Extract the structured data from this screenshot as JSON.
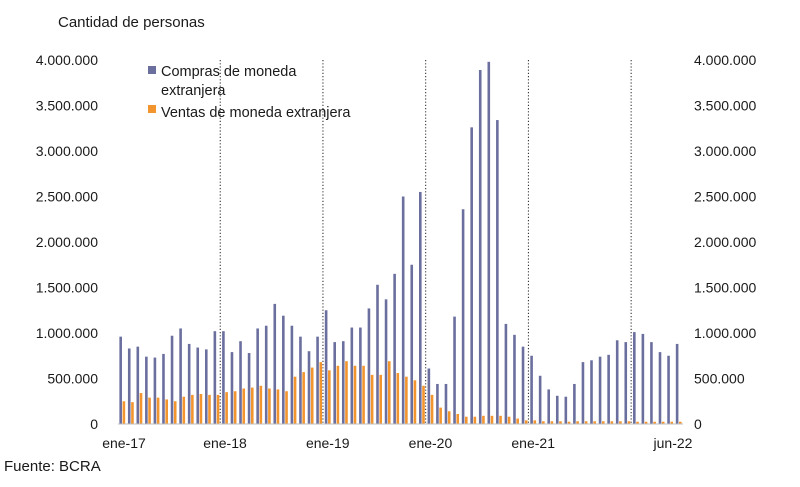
{
  "chart_data": {
    "type": "bar",
    "ylabel": "Cantidad de personas",
    "source": "Fuente: BCRA",
    "ylim": [
      0,
      4000000
    ],
    "yticks": [
      0,
      500000,
      1000000,
      1500000,
      2000000,
      2500000,
      3000000,
      3500000,
      4000000
    ],
    "ytick_labels": [
      "0",
      "500.000",
      "1.000.000",
      "1.500.000",
      "2.000.000",
      "2.500.000",
      "3.000.000",
      "3.500.000",
      "4.000.000"
    ],
    "x_labels": [
      {
        "label": "ene-17",
        "index": 0
      },
      {
        "label": "ene-18",
        "index": 12
      },
      {
        "label": "ene-19",
        "index": 24
      },
      {
        "label": "ene-20",
        "index": 36
      },
      {
        "label": "ene-21",
        "index": 48
      },
      {
        "label": "jun-22",
        "index": 65
      }
    ],
    "vlines_at_index": [
      12,
      24,
      36,
      48,
      60
    ],
    "categories": [
      "ene-17",
      "feb-17",
      "mar-17",
      "abr-17",
      "may-17",
      "jun-17",
      "jul-17",
      "ago-17",
      "sep-17",
      "oct-17",
      "nov-17",
      "dic-17",
      "ene-18",
      "feb-18",
      "mar-18",
      "abr-18",
      "may-18",
      "jun-18",
      "jul-18",
      "ago-18",
      "sep-18",
      "oct-18",
      "nov-18",
      "dic-18",
      "ene-19",
      "feb-19",
      "mar-19",
      "abr-19",
      "may-19",
      "jun-19",
      "jul-19",
      "ago-19",
      "sep-19",
      "oct-19",
      "nov-19",
      "dic-19",
      "ene-20",
      "feb-20",
      "mar-20",
      "abr-20",
      "may-20",
      "jun-20",
      "jul-20",
      "ago-20",
      "sep-20",
      "oct-20",
      "nov-20",
      "dic-20",
      "ene-21",
      "feb-21",
      "mar-21",
      "abr-21",
      "may-21",
      "jun-21",
      "jul-21",
      "ago-21",
      "sep-21",
      "oct-21",
      "nov-21",
      "dic-21",
      "ene-22",
      "feb-22",
      "mar-22",
      "abr-22",
      "may-22",
      "jun-22"
    ],
    "series": [
      {
        "name": "Compras de moneda extranjera",
        "color": "#6b6f9e",
        "values": [
          960000,
          830000,
          850000,
          740000,
          730000,
          770000,
          970000,
          1050000,
          880000,
          840000,
          820000,
          1020000,
          1020000,
          790000,
          910000,
          780000,
          1050000,
          1080000,
          1320000,
          1190000,
          1080000,
          960000,
          800000,
          960000,
          1250000,
          900000,
          910000,
          1060000,
          1060000,
          1270000,
          1530000,
          1370000,
          1650000,
          2500000,
          1750000,
          2550000,
          610000,
          440000,
          440000,
          1180000,
          2360000,
          3260000,
          3890000,
          3980000,
          3340000,
          1100000,
          980000,
          850000,
          750000,
          530000,
          380000,
          310000,
          300000,
          440000,
          680000,
          700000,
          740000,
          760000,
          920000,
          900000,
          1010000,
          990000,
          900000,
          790000,
          750000,
          880000
        ]
      },
      {
        "name": "Ventas de moneda extranjera",
        "color": "#f2952f",
        "values": [
          250000,
          240000,
          340000,
          290000,
          290000,
          270000,
          250000,
          300000,
          320000,
          330000,
          320000,
          320000,
          350000,
          360000,
          390000,
          400000,
          420000,
          390000,
          380000,
          360000,
          520000,
          570000,
          620000,
          680000,
          590000,
          640000,
          690000,
          640000,
          640000,
          540000,
          540000,
          690000,
          560000,
          520000,
          480000,
          420000,
          320000,
          180000,
          140000,
          110000,
          80000,
          80000,
          90000,
          90000,
          90000,
          80000,
          60000,
          40000,
          40000,
          30000,
          30000,
          30000,
          25000,
          30000,
          30000,
          30000,
          30000,
          30000,
          30000,
          30000,
          25000,
          25000,
          25000,
          25000,
          25000,
          25000
        ]
      }
    ],
    "legend": {
      "compras_line1": "Compras de moneda",
      "compras_line2": "extranjera",
      "ventas": "Ventas de moneda extranjera",
      "placement": "top-left"
    }
  }
}
